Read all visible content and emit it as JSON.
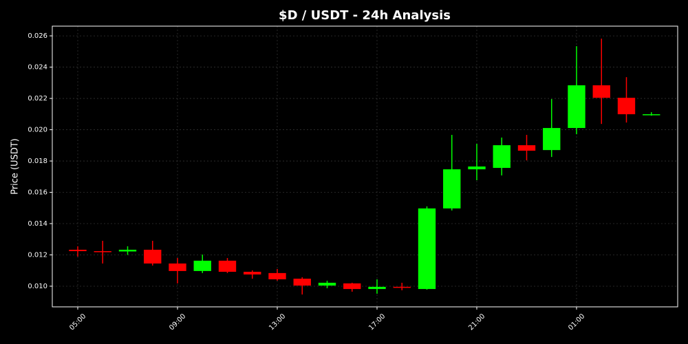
{
  "chart_data": {
    "type": "candlestick",
    "title": "$D / USDT - 24h Analysis",
    "y_label": "Price (USDT)",
    "categories": [
      "05:00",
      null,
      null,
      null,
      "09:00",
      null,
      null,
      null,
      "13:00",
      null,
      null,
      null,
      "17:00",
      null,
      null,
      null,
      "21:00",
      null,
      null,
      null,
      "01:00",
      null,
      null,
      null
    ],
    "open": [
      0.01233,
      0.01224,
      0.01222,
      0.01233,
      0.01145,
      0.01097,
      0.01163,
      0.01092,
      0.01084,
      0.01048,
      0.01004,
      0.01018,
      0.00982,
      0.00996,
      0.00982,
      0.01497,
      0.01747,
      0.01756,
      0.01901,
      0.0187,
      0.02011,
      0.02284,
      0.02204,
      0.02095
    ],
    "high": [
      0.01255,
      0.0129,
      0.01255,
      0.0129,
      0.0118,
      0.01202,
      0.0118,
      0.01101,
      0.0111,
      0.01057,
      0.01035,
      0.01022,
      0.01044,
      0.01022,
      0.0151,
      0.01967,
      0.0191,
      0.0195,
      0.01967,
      0.02196,
      0.02534,
      0.02582,
      0.02336,
      0.02112
    ],
    "low": [
      0.01189,
      0.01145,
      0.012,
      0.01132,
      0.01018,
      0.01084,
      0.01084,
      0.01048,
      0.01035,
      0.00947,
      0.00987,
      0.00965,
      0.00952,
      0.00974,
      0.00978,
      0.01484,
      0.01677,
      0.01708,
      0.01804,
      0.01826,
      0.01971,
      0.02037,
      0.02046,
      0.0209
    ],
    "close": [
      0.01224,
      0.01222,
      0.01233,
      0.01145,
      0.01097,
      0.01163,
      0.01092,
      0.01075,
      0.01044,
      0.01004,
      0.01022,
      0.00982,
      0.00996,
      0.00991,
      0.01497,
      0.01747,
      0.01765,
      0.01901,
      0.01866,
      0.02011,
      0.02284,
      0.02204,
      0.02099,
      0.02099
    ],
    "up_color": "#00ff00",
    "down_color": "#ff0000",
    "ylim": [
      0.00868,
      0.02662
    ],
    "yticks": [
      {
        "value": 0.01,
        "label": "0.010"
      },
      {
        "value": 0.012,
        "label": "0.012"
      },
      {
        "value": 0.014,
        "label": "0.014"
      },
      {
        "value": 0.016,
        "label": "0.016"
      },
      {
        "value": 0.018,
        "label": "0.018"
      },
      {
        "value": 0.02,
        "label": "0.020"
      },
      {
        "value": 0.022,
        "label": "0.022"
      },
      {
        "value": 0.024,
        "label": "0.024"
      },
      {
        "value": 0.026,
        "label": "0.026"
      }
    ],
    "grid": true
  }
}
